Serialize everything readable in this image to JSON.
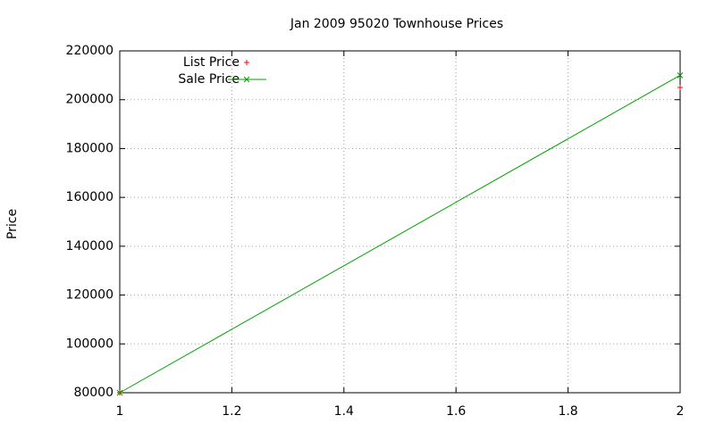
{
  "chart_data": {
    "type": "line",
    "title": "Jan 2009 95020 Townhouse Prices",
    "y_label": "Price",
    "x": [
      1,
      2
    ],
    "series": [
      {
        "name": "List Price",
        "color": "#ff0000",
        "mode": "points",
        "marker": "plus",
        "values": [
          80000,
          205000
        ]
      },
      {
        "name": "Sale Price",
        "color": "#00a000",
        "mode": "linespoints",
        "marker": "cross",
        "values": [
          80000,
          210000
        ]
      }
    ],
    "xlim": [
      1,
      2
    ],
    "xticks": [
      1,
      1.2,
      1.4,
      1.6,
      1.8,
      2
    ],
    "ylim": [
      80000,
      220000
    ],
    "yticks": [
      80000,
      100000,
      120000,
      140000,
      160000,
      180000,
      200000,
      220000
    ],
    "grid": true,
    "legend": "top-left"
  }
}
